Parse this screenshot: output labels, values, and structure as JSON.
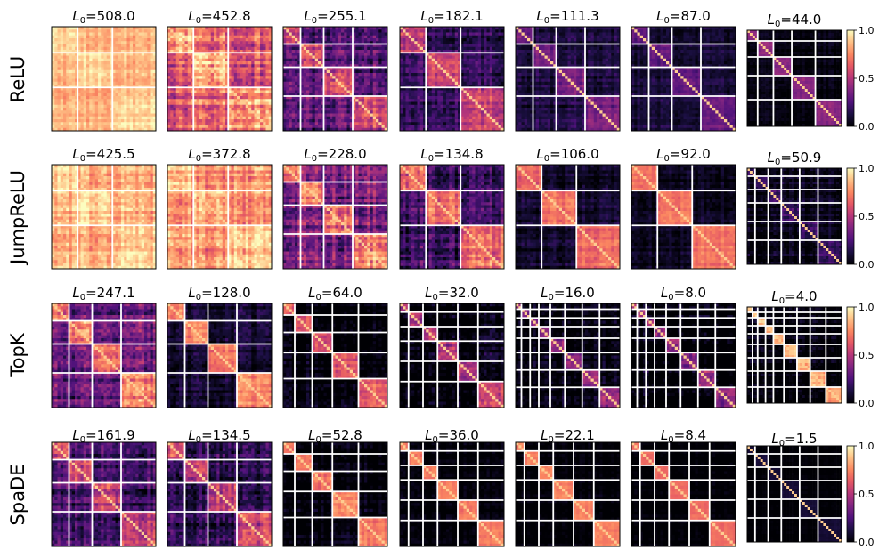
{
  "chart_data": {
    "type": "heatmap",
    "colormap": "magma",
    "colorbar": {
      "min": 0.0,
      "max": 1.0,
      "ticks": [
        "1.0",
        "0.5",
        "0.0"
      ]
    },
    "title_prefix": "L",
    "title_subscript": "0",
    "rows": [
      {
        "label": "ReLU",
        "panels": [
          {
            "title_value": "=508.0",
            "blocks": 3,
            "base": 0.85,
            "block": 0.92,
            "noise": 0.1
          },
          {
            "title_value": "=452.8",
            "blocks": 3,
            "base": 0.62,
            "block": 0.82,
            "noise": 0.22
          },
          {
            "title_value": "=255.1",
            "blocks": 4,
            "base": 0.25,
            "block": 0.55,
            "noise": 0.2
          },
          {
            "title_value": "=182.1",
            "blocks": 3,
            "base": 0.18,
            "block": 0.55,
            "noise": 0.15
          },
          {
            "title_value": "=111.3",
            "blocks": 4,
            "base": 0.12,
            "block": 0.35,
            "noise": 0.1
          },
          {
            "title_value": "=87.0",
            "blocks": 4,
            "base": 0.1,
            "block": 0.3,
            "noise": 0.08
          },
          {
            "title_value": "=44.0",
            "blocks": 5,
            "base": 0.02,
            "block": 0.4,
            "noise": 0.05
          }
        ]
      },
      {
        "label": "JumpReLU",
        "panels": [
          {
            "title_value": "=425.5",
            "blocks": 3,
            "base": 0.82,
            "block": 0.9,
            "noise": 0.14
          },
          {
            "title_value": "=372.8",
            "blocks": 3,
            "base": 0.75,
            "block": 0.85,
            "noise": 0.18
          },
          {
            "title_value": "=228.0",
            "blocks": 4,
            "base": 0.35,
            "block": 0.72,
            "noise": 0.22
          },
          {
            "title_value": "=134.8",
            "blocks": 3,
            "base": 0.2,
            "block": 0.68,
            "noise": 0.18
          },
          {
            "title_value": "=106.0",
            "blocks": 3,
            "base": 0.08,
            "block": 0.68,
            "noise": 0.1
          },
          {
            "title_value": "=92.0",
            "blocks": 3,
            "base": 0.05,
            "block": 0.7,
            "noise": 0.08
          },
          {
            "title_value": "=50.9",
            "blocks": 6,
            "base": 0.04,
            "block": 0.2,
            "noise": 0.1
          }
        ]
      },
      {
        "label": "TopK",
        "panels": [
          {
            "title_value": "=247.1",
            "blocks": 4,
            "base": 0.3,
            "block": 0.7,
            "noise": 0.2
          },
          {
            "title_value": "=128.0",
            "blocks": 4,
            "base": 0.08,
            "block": 0.72,
            "noise": 0.12
          },
          {
            "title_value": "=64.0",
            "blocks": 5,
            "base": 0.0,
            "block": 0.62,
            "noise": 0.12
          },
          {
            "title_value": "=32.0",
            "blocks": 6,
            "base": 0.0,
            "block": 0.5,
            "noise": 0.15
          },
          {
            "title_value": "=16.0",
            "blocks": 8,
            "base": 0.0,
            "block": 0.4,
            "noise": 0.12
          },
          {
            "title_value": "=8.0",
            "blocks": 8,
            "base": 0.0,
            "block": 0.45,
            "noise": 0.15
          },
          {
            "title_value": "=4.0",
            "blocks": 9,
            "base": 0.0,
            "block": 0.85,
            "noise": 0.1
          }
        ]
      },
      {
        "label": "SpaDE",
        "panels": [
          {
            "title_value": "=161.9",
            "blocks": 4,
            "base": 0.2,
            "block": 0.55,
            "noise": 0.18
          },
          {
            "title_value": "=134.5",
            "blocks": 4,
            "base": 0.15,
            "block": 0.55,
            "noise": 0.18
          },
          {
            "title_value": "=52.8",
            "blocks": 5,
            "base": 0.0,
            "block": 0.72,
            "noise": 0.1
          },
          {
            "title_value": "=36.0",
            "blocks": 6,
            "base": 0.0,
            "block": 0.72,
            "noise": 0.06
          },
          {
            "title_value": "=22.1",
            "blocks": 6,
            "base": 0.0,
            "block": 0.74,
            "noise": 0.05
          },
          {
            "title_value": "=8.4",
            "blocks": 6,
            "base": 0.0,
            "block": 0.68,
            "noise": 0.04
          },
          {
            "title_value": "=1.5",
            "blocks": 6,
            "base": 0.0,
            "block": 0.1,
            "noise": 0.02
          }
        ]
      }
    ]
  }
}
